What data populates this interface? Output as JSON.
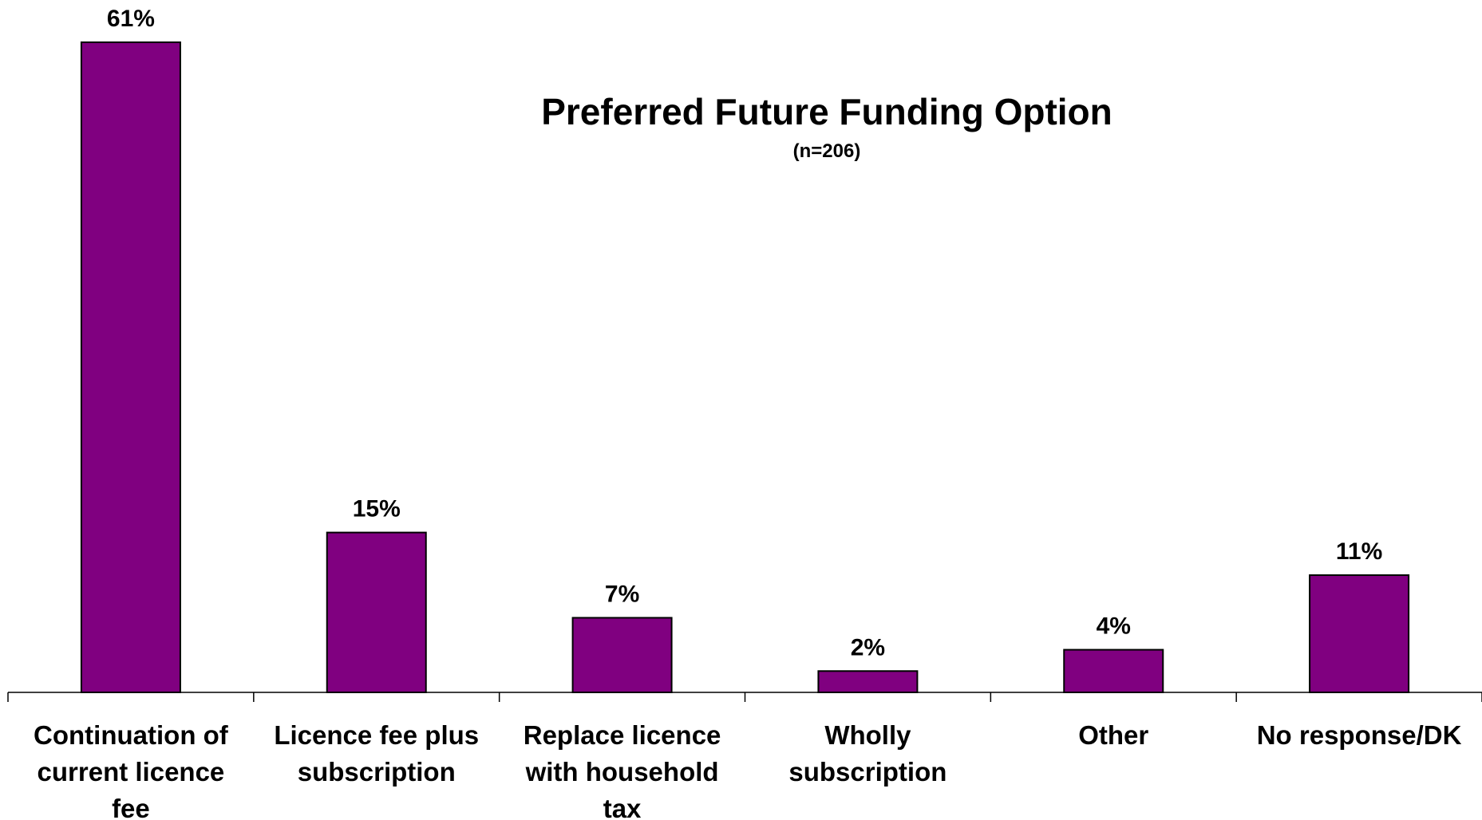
{
  "chart_data": {
    "type": "bar",
    "title": "Preferred Future Funding Option",
    "subtitle": "(n=206)",
    "categories": [
      [
        "Continuation of",
        "current licence",
        "fee"
      ],
      [
        "Licence fee plus",
        "subscription"
      ],
      [
        "Replace licence",
        "with household",
        "tax"
      ],
      [
        "Wholly",
        "subscription"
      ],
      [
        "Other"
      ],
      [
        "No response/DK"
      ]
    ],
    "values": [
      61,
      15,
      7,
      2,
      4,
      11
    ],
    "data_labels": [
      "61%",
      "15%",
      "7%",
      "2%",
      "4%",
      "11%"
    ],
    "unit": "%",
    "ylim": [
      0,
      61
    ],
    "bar_color": "#800080",
    "bar_outline": "#000000",
    "legend": "none",
    "grid": false
  }
}
